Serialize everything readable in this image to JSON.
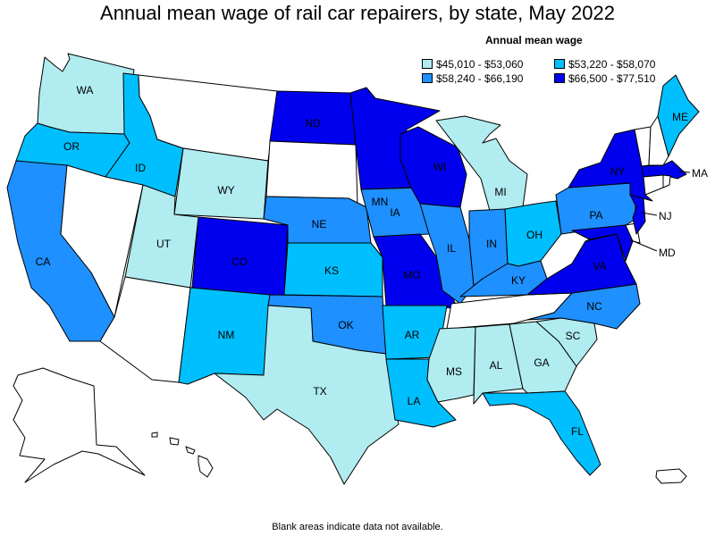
{
  "title": "Annual mean wage of rail car repairers, by state, May 2022",
  "legend": {
    "title": "Annual mean wage",
    "items": [
      {
        "range": "$45,010 - $53,060",
        "color": "#b0ecf0"
      },
      {
        "range": "$53,220 - $58,070",
        "color": "#00bfff"
      },
      {
        "range": "$58,240 - $66,190",
        "color": "#1e90ff"
      },
      {
        "range": "$66,500 - $77,510",
        "color": "#0000ee"
      }
    ]
  },
  "footnote": "Blank areas indicate data not available.",
  "colors": {
    "no_data": "#ffffff",
    "border": "#000000"
  },
  "states": [
    {
      "abbr": "WA",
      "bin": 0
    },
    {
      "abbr": "OR",
      "bin": 1
    },
    {
      "abbr": "CA",
      "bin": 2
    },
    {
      "abbr": "ID",
      "bin": 1
    },
    {
      "abbr": "NV",
      "bin": null
    },
    {
      "abbr": "MT",
      "bin": null
    },
    {
      "abbr": "WY",
      "bin": 0
    },
    {
      "abbr": "UT",
      "bin": 0
    },
    {
      "abbr": "AZ",
      "bin": null
    },
    {
      "abbr": "CO",
      "bin": 3
    },
    {
      "abbr": "NM",
      "bin": 1
    },
    {
      "abbr": "ND",
      "bin": 3
    },
    {
      "abbr": "SD",
      "bin": null
    },
    {
      "abbr": "NE",
      "bin": 2
    },
    {
      "abbr": "KS",
      "bin": 1
    },
    {
      "abbr": "OK",
      "bin": 2
    },
    {
      "abbr": "TX",
      "bin": 0
    },
    {
      "abbr": "MN",
      "bin": 3
    },
    {
      "abbr": "IA",
      "bin": 2
    },
    {
      "abbr": "MO",
      "bin": 3
    },
    {
      "abbr": "AR",
      "bin": 1
    },
    {
      "abbr": "LA",
      "bin": 1
    },
    {
      "abbr": "WI",
      "bin": 3
    },
    {
      "abbr": "IL",
      "bin": 2
    },
    {
      "abbr": "MI",
      "bin": 0
    },
    {
      "abbr": "IN",
      "bin": 2
    },
    {
      "abbr": "OH",
      "bin": 1
    },
    {
      "abbr": "KY",
      "bin": 2
    },
    {
      "abbr": "TN",
      "bin": null
    },
    {
      "abbr": "MS",
      "bin": 0
    },
    {
      "abbr": "AL",
      "bin": 0
    },
    {
      "abbr": "GA",
      "bin": 0
    },
    {
      "abbr": "FL",
      "bin": 1
    },
    {
      "abbr": "SC",
      "bin": 0
    },
    {
      "abbr": "NC",
      "bin": 2
    },
    {
      "abbr": "VA",
      "bin": 3
    },
    {
      "abbr": "WV",
      "bin": null
    },
    {
      "abbr": "PA",
      "bin": 2
    },
    {
      "abbr": "NY",
      "bin": 3
    },
    {
      "abbr": "NJ",
      "bin": 3
    },
    {
      "abbr": "MD",
      "bin": 3
    },
    {
      "abbr": "DE",
      "bin": null
    },
    {
      "abbr": "ME",
      "bin": 1
    },
    {
      "abbr": "VT",
      "bin": null
    },
    {
      "abbr": "NH",
      "bin": null
    },
    {
      "abbr": "MA",
      "bin": 3
    },
    {
      "abbr": "CT",
      "bin": null
    },
    {
      "abbr": "RI",
      "bin": null
    },
    {
      "abbr": "AK",
      "bin": null
    },
    {
      "abbr": "HI",
      "bin": null
    },
    {
      "abbr": "PR",
      "bin": null
    }
  ]
}
